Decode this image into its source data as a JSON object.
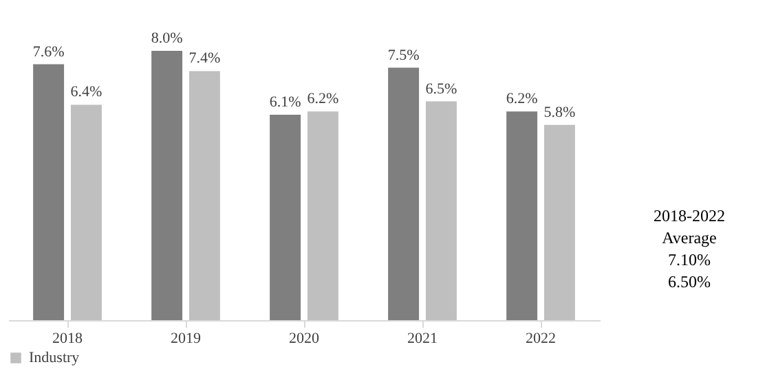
{
  "chart_data": {
    "type": "bar",
    "categories": [
      "2018",
      "2019",
      "2020",
      "2021",
      "2022"
    ],
    "series": [
      {
        "color": "#7f7f7f",
        "values": [
          7.6,
          8.0,
          6.1,
          7.5,
          6.2
        ],
        "value_labels": [
          "7.6%",
          "8.0%",
          "6.1%",
          "7.5%",
          "6.2%"
        ]
      },
      {
        "name": "Industry",
        "color": "#bfbfbf",
        "values": [
          6.4,
          7.4,
          6.2,
          6.5,
          5.8
        ],
        "value_labels": [
          "6.4%",
          "7.4%",
          "6.2%",
          "6.5%",
          "5.8%"
        ]
      }
    ],
    "tick_labels": "x",
    "grid": false,
    "legend": "bottom",
    "annotations": [
      "2018-2022",
      "Average",
      "7.10%",
      "6.50%"
    ]
  }
}
